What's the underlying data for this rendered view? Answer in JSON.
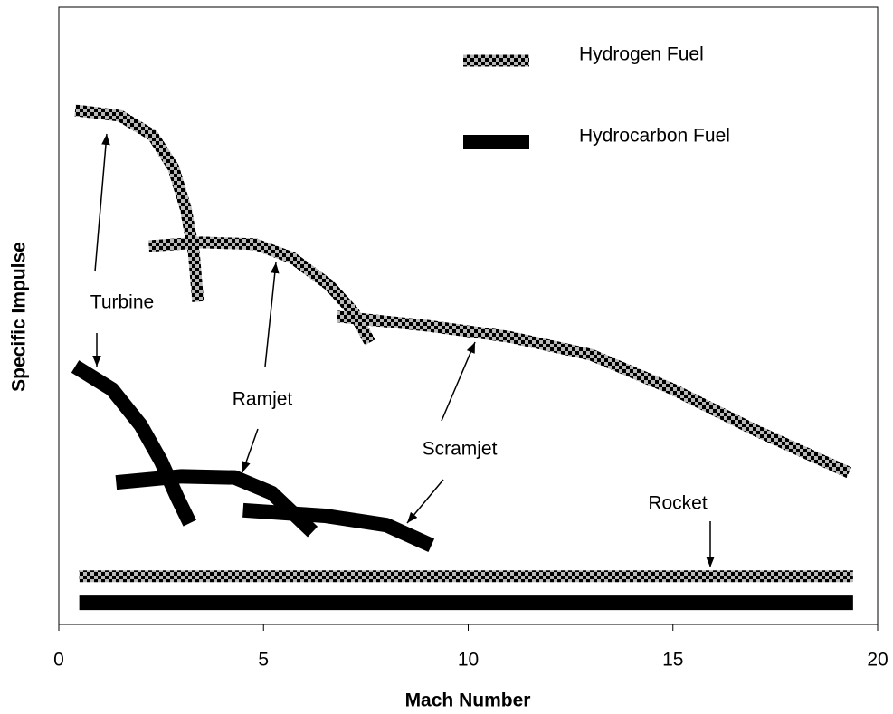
{
  "chart_data": {
    "type": "line",
    "xlabel": "Mach Number",
    "ylabel": "Specific Impulse",
    "xlim": [
      0,
      20
    ],
    "xticks": [
      0,
      5,
      10,
      15,
      20
    ],
    "ylim": [
      0,
      100
    ],
    "series": [
      {
        "name": "Hydrogen Fuel",
        "pattern": "checker",
        "color": "#000000",
        "curves": [
          {
            "x": [
              0.4,
              1.5,
              2.3,
              2.8,
              3.1,
              3.3,
              3.4
            ],
            "values": [
              83.3,
              82.4,
              79.2,
              74.0,
              67.4,
              60.1,
              52.3
            ]
          },
          {
            "x": [
              2.2,
              3.5,
              4.8,
              5.7,
              6.6,
              7.2,
              7.6
            ],
            "values": [
              61.3,
              61.9,
              61.6,
              59.4,
              55.0,
              50.6,
              45.7
            ]
          },
          {
            "x": [
              6.8,
              9,
              11,
              13,
              15,
              17,
              19.3
            ],
            "values": [
              49.9,
              48.4,
              46.6,
              43.7,
              38.1,
              31.5,
              24.6
            ]
          },
          {
            "x": [
              0.5,
              19.4
            ],
            "values": [
              7.8,
              7.8
            ]
          }
        ]
      },
      {
        "name": "Hydrocarbon Fuel",
        "pattern": "solid",
        "color": "#000000",
        "curves": [
          {
            "x": [
              0.4,
              1.3,
              2.0,
              2.5,
              2.9,
              3.2
            ],
            "values": [
              41.8,
              38.1,
              32.3,
              26.4,
              20.5,
              16.4
            ]
          },
          {
            "x": [
              1.4,
              3.0,
              4.3,
              5.2,
              6.2
            ],
            "values": [
              23.0,
              24.0,
              23.8,
              21.3,
              15.0
            ]
          },
          {
            "x": [
              4.5,
              6.5,
              8,
              9.1
            ],
            "values": [
              18.5,
              17.6,
              16.1,
              12.8
            ]
          },
          {
            "x": [
              0.5,
              19.4
            ],
            "values": [
              3.5,
              3.5
            ]
          }
        ]
      }
    ],
    "annotations": [
      "Turbine",
      "Ramjet",
      "Scramjet",
      "Rocket"
    ]
  }
}
